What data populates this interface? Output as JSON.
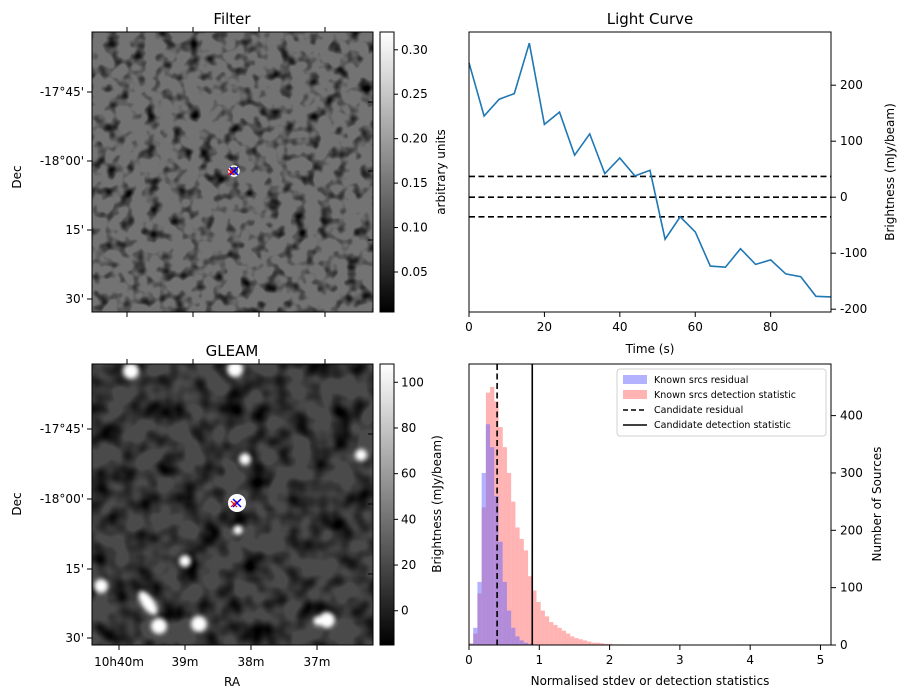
{
  "panels": {
    "filter": {
      "title": "Filter",
      "ylabel": "Dec",
      "yticks": [
        "-17°45'",
        "-18°00'",
        "15'",
        "30'"
      ],
      "colorbar": {
        "label": "arbitrary units",
        "ticks": [
          "0.05",
          "0.10",
          "0.15",
          "0.20",
          "0.25",
          "0.30"
        ],
        "range": [
          0.005,
          0.32
        ]
      }
    },
    "gleam": {
      "title": "GLEAM",
      "ylabel": "Dec",
      "xlabel": "RA",
      "yticks": [
        "-17°45'",
        "-18°00'",
        "15'",
        "30'"
      ],
      "xticks": [
        "10h40m",
        "39m",
        "38m",
        "37m"
      ],
      "colorbar": {
        "label": "Brightness (mJy/beam)",
        "ticks": [
          "0",
          "20",
          "40",
          "60",
          "80",
          "100"
        ],
        "range": [
          -15,
          108
        ]
      }
    }
  },
  "chart_data": [
    {
      "type": "line",
      "title": "Light Curve",
      "xlabel": "Time (s)",
      "ylabel": "Brightness (mJy/beam)",
      "xlim": [
        0,
        96
      ],
      "ylim": [
        -205,
        295
      ],
      "xticks": [
        0,
        20,
        40,
        60,
        80
      ],
      "yticks": [
        -200,
        -100,
        0,
        100,
        200
      ],
      "x": [
        0,
        4,
        8,
        12,
        16,
        20,
        24,
        28,
        32,
        36,
        40,
        44,
        48,
        52,
        56,
        60,
        64,
        68,
        72,
        76,
        80,
        84,
        88,
        92,
        96
      ],
      "values": [
        240,
        145,
        175,
        185,
        275,
        130,
        152,
        75,
        113,
        42,
        70,
        38,
        48,
        -75,
        -35,
        -62,
        -123,
        -125,
        -92,
        -120,
        -112,
        -137,
        -142,
        -177,
        -178
      ],
      "hlines": [
        37,
        0,
        -35
      ],
      "color": "#1f77b4"
    },
    {
      "type": "bar",
      "title": "",
      "xlabel": "Normalised stdev or detection statistics",
      "ylabel": "Number of Sources",
      "xlim": [
        0,
        5.15
      ],
      "ylim": [
        0,
        490
      ],
      "xticks": [
        0,
        1,
        2,
        3,
        4,
        5
      ],
      "yticks": [
        0,
        100,
        200,
        300,
        400
      ],
      "bin_width": 0.06,
      "bin_start": 0,
      "legend": [
        "Known srcs residual",
        "Known srcs detection statistic",
        "Candidate residual",
        "Candidate detection statistic"
      ],
      "legend_position": "top-right",
      "series": [
        {
          "name": "Known srcs residual",
          "color": "#6666ff",
          "start": 0,
          "values": [
            2,
            30,
            110,
            300,
            385,
            345,
            260,
            180,
            110,
            60,
            30,
            15,
            8,
            4,
            2,
            1,
            1,
            0,
            0,
            0,
            0,
            0,
            0,
            0,
            0,
            0,
            0,
            0,
            0,
            0
          ]
        },
        {
          "name": "Known srcs detection statistic",
          "color": "#ff8080",
          "start": 0,
          "values": [
            3,
            20,
            90,
            240,
            440,
            450,
            425,
            380,
            345,
            300,
            250,
            205,
            185,
            165,
            120,
            95,
            75,
            60,
            50,
            40,
            35,
            30,
            25,
            20,
            15,
            12,
            10,
            8,
            6,
            4,
            4,
            3,
            2,
            2,
            1,
            1,
            1,
            1,
            0,
            0,
            0,
            0,
            0,
            0,
            0,
            0,
            0,
            0,
            0,
            0,
            0,
            0,
            0,
            0,
            0,
            0,
            0,
            0,
            0,
            0,
            0,
            0,
            0,
            0,
            1,
            0,
            0,
            0,
            0,
            0,
            0,
            0,
            0,
            0,
            0,
            0,
            0,
            0,
            0,
            0,
            0,
            0,
            0,
            0,
            0
          ]
        }
      ],
      "vlines": [
        {
          "name": "Candidate residual",
          "x": 0.4,
          "style": "dashed"
        },
        {
          "name": "Candidate detection statistic",
          "x": 0.9,
          "style": "solid"
        }
      ]
    }
  ]
}
